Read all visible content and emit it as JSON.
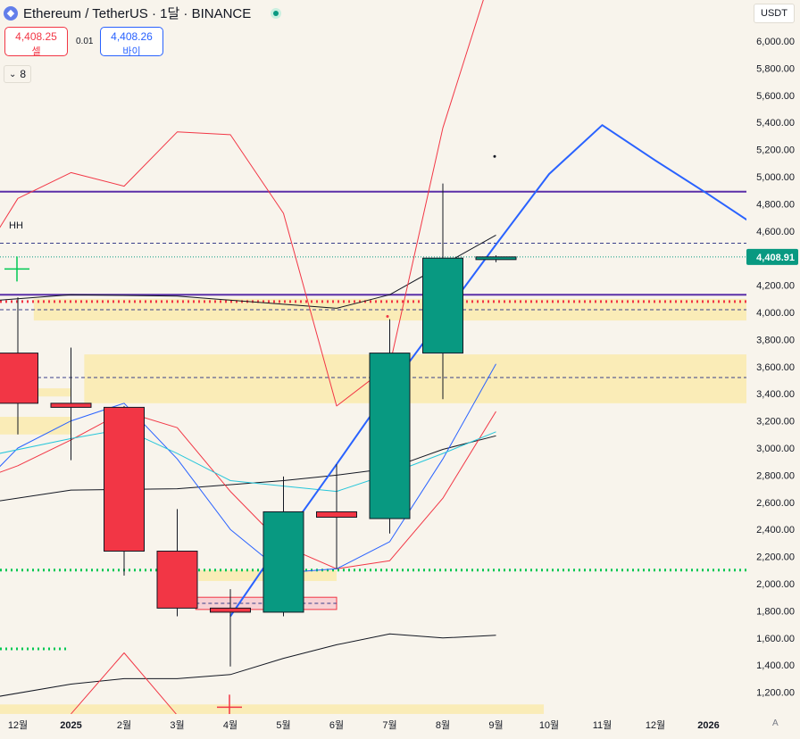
{
  "header": {
    "symbol_title": "Ethereum / TetherUS · 1달 · BINANCE",
    "sell_price": "4,408.25",
    "sell_label": "셀",
    "spread": "0.01",
    "buy_price": "4,408.26",
    "buy_label": "바이",
    "indicator_count": "8"
  },
  "price_axis": {
    "currency": "USDT",
    "current_price_label": "4,408.91",
    "auto_label": "A"
  },
  "annotations": {
    "hh_label": "HH"
  },
  "colors": {
    "up": "#089981",
    "down": "#f23645",
    "blue_line": "#2962ff",
    "purple_line": "#5b2fa8",
    "zone_fill": "#fbe9a6",
    "background": "#f8f4ec"
  },
  "chart_data": {
    "type": "candlestick",
    "title": "Ethereum / TetherUS · 1달 · BINANCE",
    "ylim": [
      1050,
      6300
    ],
    "y_ticks": [
      1200,
      1400,
      1600,
      1800,
      2000,
      2200,
      2400,
      2600,
      2800,
      3000,
      3200,
      3400,
      3600,
      3800,
      4000,
      4200,
      4400,
      4600,
      4800,
      5000,
      5200,
      5400,
      5600,
      5800,
      6000
    ],
    "x_ticks": [
      {
        "i": 0,
        "label": "12월"
      },
      {
        "i": 1,
        "label": "2025"
      },
      {
        "i": 2,
        "label": "2월"
      },
      {
        "i": 3,
        "label": "3월"
      },
      {
        "i": 4,
        "label": "4월"
      },
      {
        "i": 5,
        "label": "5월"
      },
      {
        "i": 6,
        "label": "6월"
      },
      {
        "i": 7,
        "label": "7월"
      },
      {
        "i": 8,
        "label": "8월"
      },
      {
        "i": 9,
        "label": "9월"
      },
      {
        "i": 10,
        "label": "10월"
      },
      {
        "i": 11,
        "label": "11월"
      },
      {
        "i": 12,
        "label": "12월"
      },
      {
        "i": 13,
        "label": "2026"
      }
    ],
    "candles": [
      {
        "i": 0,
        "o": 3700,
        "h": 4110,
        "l": 3100,
        "c": 3330
      },
      {
        "i": 1,
        "o": 3330,
        "h": 3740,
        "l": 2910,
        "c": 3300
      },
      {
        "i": 2,
        "o": 3300,
        "h": 3310,
        "l": 2060,
        "c": 2240
      },
      {
        "i": 3,
        "o": 2240,
        "h": 2550,
        "l": 1760,
        "c": 1820
      },
      {
        "i": 4,
        "o": 1820,
        "h": 1960,
        "l": 1390,
        "c": 1790
      },
      {
        "i": 5,
        "o": 1790,
        "h": 2790,
        "l": 1760,
        "c": 2530
      },
      {
        "i": 6,
        "o": 2530,
        "h": 2880,
        "l": 2110,
        "c": 2490
      },
      {
        "i": 7,
        "o": 2480,
        "h": 3950,
        "l": 2370,
        "c": 3700
      },
      {
        "i": 8,
        "o": 3700,
        "h": 4950,
        "l": 3360,
        "c": 4400
      },
      {
        "i": 9,
        "o": 4400,
        "h": 4420,
        "l": 4370,
        "c": 4408.91
      }
    ],
    "series": [
      {
        "name": "black-upper",
        "color": "#131722",
        "width": 1,
        "points": [
          [
            -0.35,
            4090
          ],
          [
            1,
            4130
          ],
          [
            3,
            4120
          ],
          [
            5,
            4060
          ],
          [
            6,
            4030
          ],
          [
            7,
            4130
          ],
          [
            9,
            4570
          ]
        ]
      },
      {
        "name": "black-middle",
        "color": "#131722",
        "width": 1,
        "points": [
          [
            -0.35,
            2610
          ],
          [
            1,
            2690
          ],
          [
            3,
            2700
          ],
          [
            5,
            2760
          ],
          [
            6,
            2800
          ],
          [
            7,
            2850
          ],
          [
            8,
            2990
          ],
          [
            9,
            3090
          ]
        ]
      },
      {
        "name": "black-lower",
        "color": "#131722",
        "width": 1,
        "points": [
          [
            -0.35,
            1170
          ],
          [
            1,
            1260
          ],
          [
            2,
            1300
          ],
          [
            3,
            1300
          ],
          [
            4,
            1330
          ],
          [
            5,
            1450
          ],
          [
            6,
            1550
          ],
          [
            7,
            1630
          ],
          [
            8,
            1600
          ],
          [
            9,
            1620
          ]
        ]
      },
      {
        "name": "red-oscillator-top",
        "color": "#f23645",
        "width": 1,
        "points": [
          [
            -0.35,
            4620
          ],
          [
            0,
            4840
          ],
          [
            1,
            5030
          ],
          [
            2,
            4930
          ],
          [
            3,
            5330
          ],
          [
            4,
            5310
          ],
          [
            5,
            4730
          ],
          [
            6,
            3310
          ],
          [
            7,
            3610
          ],
          [
            8,
            5360
          ],
          [
            8.8,
            6350
          ]
        ]
      },
      {
        "name": "red-oscillator-mid",
        "color": "#f23645",
        "width": 1,
        "points": [
          [
            -0.35,
            2820
          ],
          [
            0,
            2870
          ],
          [
            1,
            3060
          ],
          [
            2,
            3270
          ],
          [
            3,
            3150
          ],
          [
            4,
            2680
          ],
          [
            5,
            2280
          ],
          [
            6,
            2110
          ],
          [
            7,
            2170
          ],
          [
            8,
            2630
          ],
          [
            9,
            3270
          ]
        ]
      },
      {
        "name": "red-oscillator-low",
        "color": "#f23645",
        "width": 1,
        "points": [
          [
            1,
            1040
          ],
          [
            2,
            1490
          ],
          [
            3,
            1030
          ]
        ]
      },
      {
        "name": "blue-line",
        "color": "#2962ff",
        "width": 1,
        "points": [
          [
            -0.35,
            2860
          ],
          [
            0,
            3000
          ],
          [
            1,
            3200
          ],
          [
            2,
            3330
          ],
          [
            3,
            2920
          ],
          [
            4,
            2400
          ],
          [
            5,
            2080
          ],
          [
            6,
            2110
          ],
          [
            7,
            2310
          ],
          [
            8,
            2920
          ],
          [
            9,
            3620
          ]
        ]
      },
      {
        "name": "cyan-line",
        "color": "#26c6da",
        "width": 1,
        "points": [
          [
            -0.35,
            2960
          ],
          [
            1,
            3070
          ],
          [
            2,
            3140
          ],
          [
            3,
            2960
          ],
          [
            4,
            2760
          ],
          [
            5,
            2720
          ],
          [
            6,
            2680
          ],
          [
            7,
            2810
          ],
          [
            8,
            2960
          ],
          [
            9,
            3120
          ]
        ]
      },
      {
        "name": "blue-projection",
        "color": "#2962ff",
        "width": 2,
        "points": [
          [
            4,
            1760
          ],
          [
            5,
            2330
          ],
          [
            6,
            2880
          ],
          [
            7,
            3440
          ],
          [
            8,
            3970
          ],
          [
            9,
            4500
          ],
          [
            10,
            5020
          ],
          [
            11,
            5380
          ],
          [
            12,
            5120
          ],
          [
            13,
            4870
          ],
          [
            14,
            4610
          ]
        ]
      }
    ],
    "levels": [
      {
        "name": "purple-top",
        "value": 4890,
        "color": "#5b2fa8",
        "style": "solid"
      },
      {
        "name": "purple-mid",
        "value": 4130,
        "color": "#5b2fa8",
        "style": "solid"
      },
      {
        "name": "navy-dashed-high",
        "value": 4510,
        "color": "#3a3f8a",
        "style": "dashed"
      },
      {
        "name": "navy-dashed-zone",
        "value": 3520,
        "color": "#3a3f8a",
        "style": "dashed"
      },
      {
        "name": "green-current",
        "value": 4408.91,
        "color": "#089981",
        "style": "dotted"
      },
      {
        "name": "red-dotted",
        "value": 4080,
        "color": "#f23645",
        "style": "dotted-bold"
      },
      {
        "name": "green-dotted",
        "value": 2100,
        "color": "#00c853",
        "style": "dotted-bold"
      },
      {
        "name": "zone-top-dashed",
        "value": 4020,
        "color": "#3a3f8a",
        "style": "dashed"
      }
    ],
    "zones": [
      {
        "name": "supply-zone-upper",
        "from": 3940,
        "to": 4100,
        "x_from": 0.3,
        "x_to": 14.5,
        "color": "#fbe9a6"
      },
      {
        "name": "supply-zone-main",
        "from": 3330,
        "to": 3690,
        "x_from": 1.25,
        "x_to": 14.5,
        "color": "#fbe9a6"
      },
      {
        "name": "supply-zone-left",
        "from": 3380,
        "to": 3440,
        "x_from": 0.3,
        "x_to": 1.0,
        "color": "#fbe9a6"
      },
      {
        "name": "supply-zone-left2",
        "from": 3100,
        "to": 3230,
        "x_from": -0.35,
        "x_to": 1.0,
        "color": "#fbe9a6"
      },
      {
        "name": "demand-zone-small",
        "from": 2020,
        "to": 2100,
        "x_from": 3.4,
        "x_to": 6.0,
        "color": "#fbe9a6"
      },
      {
        "name": "demand-zone-red",
        "from": 1810,
        "to": 1900,
        "x_from": 3.35,
        "x_to": 6.0,
        "color": "#f7c5cc"
      },
      {
        "name": "demand-zone-bottom",
        "from": 1040,
        "to": 1110,
        "x_from": -0.35,
        "x_to": 9.9,
        "color": "#fbe9a6"
      }
    ]
  }
}
